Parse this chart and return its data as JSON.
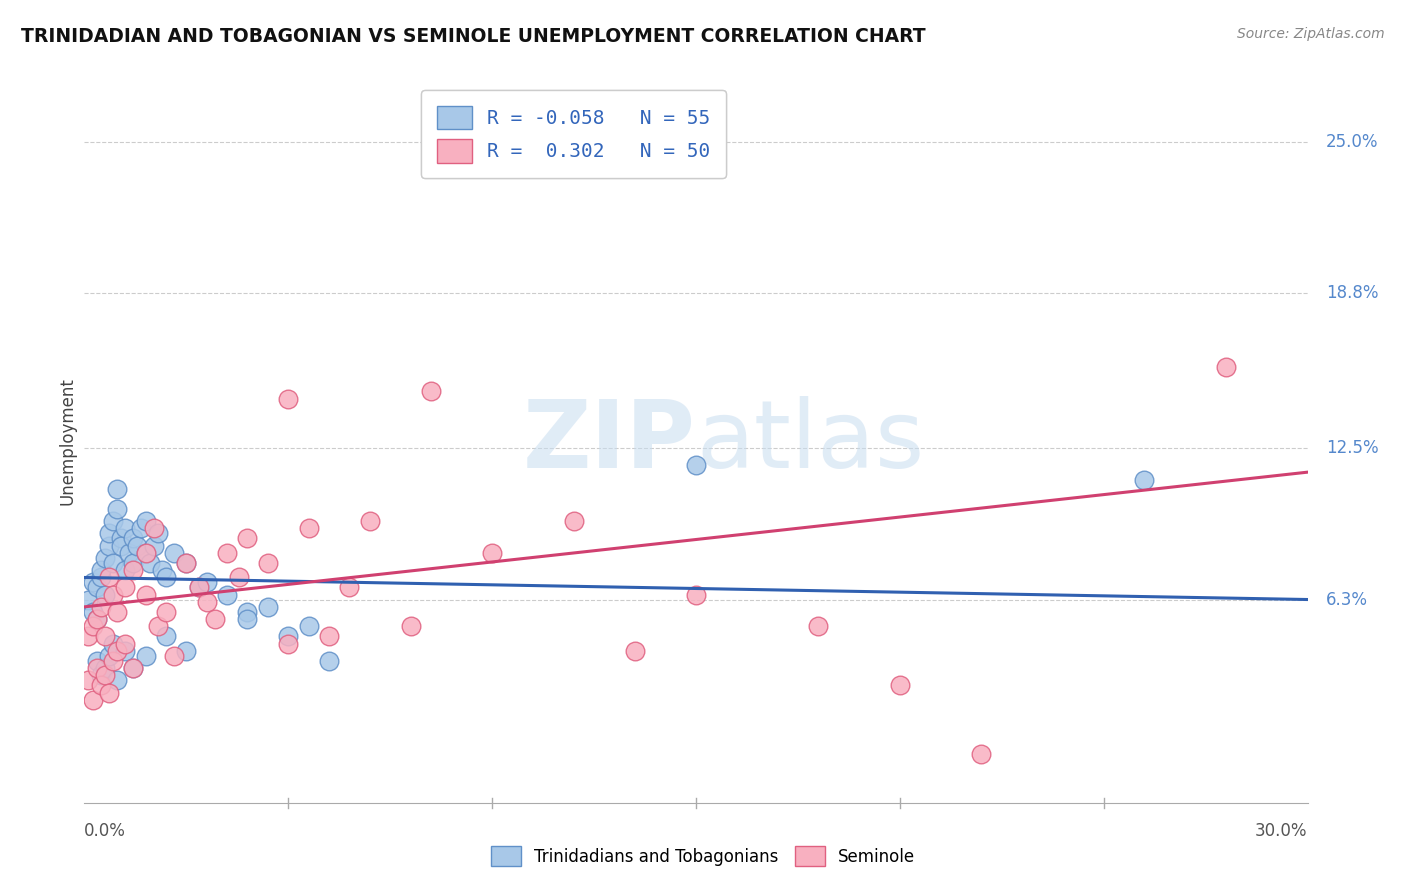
{
  "title": "TRINIDADIAN AND TOBAGONIAN VS SEMINOLE UNEMPLOYMENT CORRELATION CHART",
  "source": "Source: ZipAtlas.com",
  "ylabel": "Unemployment",
  "y_ticks": [
    0.063,
    0.125,
    0.188,
    0.25
  ],
  "y_tick_labels": [
    "6.3%",
    "12.5%",
    "18.8%",
    "25.0%"
  ],
  "xlim": [
    0.0,
    0.3
  ],
  "ylim": [
    -0.02,
    0.275
  ],
  "watermark": "ZIPatlas",
  "legend_label_blue": "Trinidadians and Tobagonians",
  "legend_label_pink": "Seminole",
  "blue_scatter_color": "#a8c8e8",
  "blue_edge_color": "#6090c8",
  "pink_scatter_color": "#f8b0c0",
  "pink_edge_color": "#e06080",
  "blue_line_color": "#3060b0",
  "pink_line_color": "#d04070",
  "blue_R": -0.058,
  "blue_N": 55,
  "pink_R": 0.302,
  "pink_N": 50,
  "blue_trend_y0": 0.072,
  "blue_trend_y1": 0.063,
  "pink_trend_y0": 0.06,
  "pink_trend_y1": 0.115,
  "blue_dots": [
    [
      0.001,
      0.063
    ],
    [
      0.002,
      0.058
    ],
    [
      0.002,
      0.07
    ],
    [
      0.003,
      0.055
    ],
    [
      0.003,
      0.068
    ],
    [
      0.004,
      0.072
    ],
    [
      0.004,
      0.075
    ],
    [
      0.005,
      0.08
    ],
    [
      0.005,
      0.065
    ],
    [
      0.006,
      0.085
    ],
    [
      0.006,
      0.09
    ],
    [
      0.007,
      0.078
    ],
    [
      0.007,
      0.095
    ],
    [
      0.008,
      0.1
    ],
    [
      0.008,
      0.108
    ],
    [
      0.009,
      0.088
    ],
    [
      0.009,
      0.085
    ],
    [
      0.01,
      0.092
    ],
    [
      0.01,
      0.075
    ],
    [
      0.011,
      0.082
    ],
    [
      0.012,
      0.088
    ],
    [
      0.012,
      0.078
    ],
    [
      0.013,
      0.085
    ],
    [
      0.014,
      0.092
    ],
    [
      0.015,
      0.095
    ],
    [
      0.015,
      0.082
    ],
    [
      0.016,
      0.078
    ],
    [
      0.017,
      0.085
    ],
    [
      0.018,
      0.09
    ],
    [
      0.019,
      0.075
    ],
    [
      0.02,
      0.072
    ],
    [
      0.022,
      0.082
    ],
    [
      0.025,
      0.078
    ],
    [
      0.028,
      0.068
    ],
    [
      0.03,
      0.07
    ],
    [
      0.035,
      0.065
    ],
    [
      0.04,
      0.058
    ],
    [
      0.04,
      0.055
    ],
    [
      0.045,
      0.06
    ],
    [
      0.05,
      0.048
    ],
    [
      0.055,
      0.052
    ],
    [
      0.003,
      0.038
    ],
    [
      0.004,
      0.032
    ],
    [
      0.005,
      0.035
    ],
    [
      0.006,
      0.04
    ],
    [
      0.007,
      0.045
    ],
    [
      0.008,
      0.03
    ],
    [
      0.01,
      0.042
    ],
    [
      0.012,
      0.035
    ],
    [
      0.015,
      0.04
    ],
    [
      0.02,
      0.048
    ],
    [
      0.025,
      0.042
    ],
    [
      0.06,
      0.038
    ],
    [
      0.15,
      0.118
    ],
    [
      0.26,
      0.112
    ]
  ],
  "pink_dots": [
    [
      0.001,
      0.03
    ],
    [
      0.001,
      0.048
    ],
    [
      0.002,
      0.022
    ],
    [
      0.002,
      0.052
    ],
    [
      0.003,
      0.035
    ],
    [
      0.003,
      0.055
    ],
    [
      0.004,
      0.028
    ],
    [
      0.004,
      0.06
    ],
    [
      0.005,
      0.032
    ],
    [
      0.005,
      0.048
    ],
    [
      0.006,
      0.025
    ],
    [
      0.006,
      0.072
    ],
    [
      0.007,
      0.038
    ],
    [
      0.007,
      0.065
    ],
    [
      0.008,
      0.042
    ],
    [
      0.008,
      0.058
    ],
    [
      0.01,
      0.068
    ],
    [
      0.01,
      0.045
    ],
    [
      0.012,
      0.075
    ],
    [
      0.012,
      0.035
    ],
    [
      0.015,
      0.082
    ],
    [
      0.015,
      0.065
    ],
    [
      0.017,
      0.092
    ],
    [
      0.018,
      0.052
    ],
    [
      0.02,
      0.058
    ],
    [
      0.022,
      0.04
    ],
    [
      0.025,
      0.078
    ],
    [
      0.028,
      0.068
    ],
    [
      0.03,
      0.062
    ],
    [
      0.032,
      0.055
    ],
    [
      0.035,
      0.082
    ],
    [
      0.038,
      0.072
    ],
    [
      0.04,
      0.088
    ],
    [
      0.045,
      0.078
    ],
    [
      0.05,
      0.045
    ],
    [
      0.055,
      0.092
    ],
    [
      0.06,
      0.048
    ],
    [
      0.065,
      0.068
    ],
    [
      0.07,
      0.095
    ],
    [
      0.08,
      0.052
    ],
    [
      0.085,
      0.148
    ],
    [
      0.1,
      0.082
    ],
    [
      0.12,
      0.095
    ],
    [
      0.135,
      0.042
    ],
    [
      0.15,
      0.065
    ],
    [
      0.18,
      0.052
    ],
    [
      0.2,
      0.028
    ],
    [
      0.22,
      0.0
    ],
    [
      0.28,
      0.158
    ],
    [
      0.05,
      0.145
    ]
  ]
}
